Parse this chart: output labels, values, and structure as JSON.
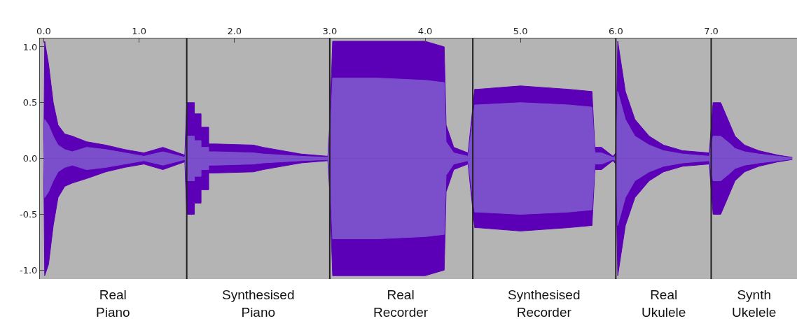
{
  "chart_data": {
    "type": "area",
    "x": [
      0.0,
      0.01,
      0.05,
      0.1,
      0.15,
      0.22,
      0.3,
      0.45,
      0.65,
      0.85,
      1.05,
      1.25,
      1.48,
      1.5,
      1.58,
      1.58,
      1.65,
      1.65,
      1.73,
      1.73,
      1.8,
      2.2,
      2.3,
      2.5,
      2.7,
      2.98,
      3.0,
      3.03,
      3.5,
      4.0,
      4.2,
      4.22,
      4.3,
      4.45,
      4.52,
      4.55,
      5.0,
      5.5,
      5.75,
      5.78,
      5.85,
      5.97,
      6.0,
      6.02,
      6.1,
      6.2,
      6.35,
      6.5,
      6.7,
      6.98,
      7.02,
      7.1,
      7.2,
      7.25,
      7.35,
      7.5,
      7.7,
      7.85
    ],
    "series": [
      {
        "color": "#5c00b8",
        "values": [
          0.05,
          1.05,
          0.85,
          0.5,
          0.3,
          0.22,
          0.2,
          0.15,
          0.12,
          0.08,
          0.05,
          0.1,
          0.03,
          0.5,
          0.5,
          0.4,
          0.4,
          0.28,
          0.28,
          0.13,
          0.13,
          0.12,
          0.1,
          0.07,
          0.04,
          0.02,
          0.3,
          1.05,
          1.05,
          1.05,
          1.0,
          0.3,
          0.1,
          0.05,
          0.62,
          0.62,
          0.65,
          0.62,
          0.6,
          0.1,
          0.1,
          0.02,
          0.05,
          1.05,
          0.6,
          0.35,
          0.2,
          0.12,
          0.07,
          0.05,
          0.5,
          0.5,
          0.3,
          0.2,
          0.12,
          0.07,
          0.03,
          0.01
        ]
      },
      {
        "color": "#5c00b8",
        "values": [
          -0.05,
          -1.05,
          -0.95,
          -0.6,
          -0.35,
          -0.25,
          -0.22,
          -0.18,
          -0.12,
          -0.08,
          -0.05,
          -0.1,
          -0.03,
          -0.5,
          -0.5,
          -0.4,
          -0.4,
          -0.28,
          -0.28,
          -0.13,
          -0.13,
          -0.12,
          -0.1,
          -0.07,
          -0.04,
          -0.02,
          -0.3,
          -1.05,
          -1.05,
          -1.05,
          -1.0,
          -0.3,
          -0.1,
          -0.05,
          -0.62,
          -0.62,
          -0.65,
          -0.62,
          -0.6,
          -0.1,
          -0.1,
          -0.02,
          -0.05,
          -1.05,
          -0.6,
          -0.35,
          -0.2,
          -0.12,
          -0.07,
          -0.05,
          -0.5,
          -0.5,
          -0.3,
          -0.2,
          -0.12,
          -0.07,
          -0.03,
          -0.01
        ]
      },
      {
        "color": "#7b4fcc",
        "values": [
          0.0,
          0.35,
          0.3,
          0.2,
          0.12,
          0.08,
          0.06,
          0.1,
          0.08,
          0.05,
          0.02,
          0.06,
          0.01,
          0.2,
          0.2,
          0.16,
          0.16,
          0.1,
          0.1,
          0.06,
          0.06,
          0.05,
          0.04,
          0.03,
          0.02,
          0.01,
          0.15,
          0.72,
          0.72,
          0.7,
          0.68,
          0.15,
          0.05,
          0.02,
          0.48,
          0.48,
          0.5,
          0.48,
          0.46,
          0.05,
          0.05,
          0.01,
          0.02,
          0.6,
          0.35,
          0.2,
          0.12,
          0.07,
          0.04,
          0.02,
          0.2,
          0.2,
          0.13,
          0.09,
          0.06,
          0.04,
          0.02,
          0.005
        ]
      },
      {
        "color": "#7b4fcc",
        "values": [
          0.0,
          -0.35,
          -0.3,
          -0.2,
          -0.12,
          -0.08,
          -0.06,
          -0.1,
          -0.08,
          -0.05,
          -0.02,
          -0.06,
          -0.01,
          -0.2,
          -0.2,
          -0.16,
          -0.16,
          -0.1,
          -0.1,
          -0.06,
          -0.06,
          -0.05,
          -0.04,
          -0.03,
          -0.02,
          -0.01,
          -0.15,
          -0.72,
          -0.72,
          -0.7,
          -0.68,
          -0.15,
          -0.05,
          -0.02,
          -0.48,
          -0.48,
          -0.5,
          -0.48,
          -0.46,
          -0.05,
          -0.05,
          -0.01,
          -0.02,
          -0.6,
          -0.35,
          -0.2,
          -0.12,
          -0.07,
          -0.04,
          -0.02,
          -0.2,
          -0.2,
          -0.13,
          -0.09,
          -0.06,
          -0.04,
          -0.02,
          -0.005
        ]
      }
    ],
    "xlim": [
      -0.04,
      7.9
    ],
    "xticks": [
      {
        "value": 0,
        "label": "0.0"
      },
      {
        "value": 1,
        "label": "1.0"
      },
      {
        "value": 2,
        "label": "2.0"
      },
      {
        "value": 3,
        "label": "3.0"
      },
      {
        "value": 4,
        "label": "4.0"
      },
      {
        "value": 5,
        "label": "5.0"
      },
      {
        "value": 6,
        "label": "6.0"
      },
      {
        "value": 7,
        "label": "7.0"
      }
    ],
    "ylim": [
      -1.08,
      1.075
    ],
    "yticks": [
      {
        "value": 1,
        "label": "1.0"
      },
      {
        "value": 0.5,
        "label": "0.5"
      },
      {
        "value": 0,
        "label": "0.0"
      },
      {
        "value": -0.5,
        "label": "-0.5"
      },
      {
        "value": -1,
        "label": "-1.0"
      }
    ],
    "ref_lines": [
      {
        "axis": "x",
        "value": 1.5,
        "color": "#202020"
      },
      {
        "axis": "x",
        "value": 3.0,
        "color": "#202020"
      },
      {
        "axis": "x",
        "value": 4.5,
        "color": "#202020"
      },
      {
        "axis": "x",
        "value": 6.0,
        "color": "#202020"
      },
      {
        "axis": "x",
        "value": 7.0,
        "color": "#202020"
      }
    ],
    "annotations": [
      "Real\nPiano",
      "Synthesised\nPiano",
      "Real\nRecorder",
      "Synthesised\nRecorder",
      "Real\nUkulele",
      "Synth\nUkelele"
    ],
    "grid": false
  }
}
